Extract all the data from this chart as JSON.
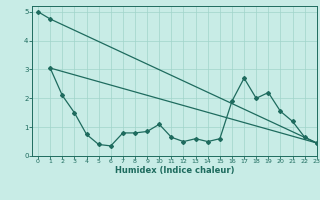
{
  "xlabel": "Humidex (Indice chaleur)",
  "xlim": [
    -0.5,
    23
  ],
  "ylim": [
    0,
    5.2
  ],
  "yticks": [
    0,
    1,
    2,
    3,
    4,
    5
  ],
  "xticks": [
    0,
    1,
    2,
    3,
    4,
    5,
    6,
    7,
    8,
    9,
    10,
    11,
    12,
    13,
    14,
    15,
    16,
    17,
    18,
    19,
    20,
    21,
    22,
    23
  ],
  "bg_color": "#c8ece6",
  "line_color": "#1e6b5e",
  "grid_color": "#a0d4ca",
  "line1_x": [
    0,
    1,
    23
  ],
  "line1_y": [
    5.0,
    4.75,
    0.45
  ],
  "line2_x": [
    1,
    23
  ],
  "line2_y": [
    3.05,
    0.45
  ],
  "line3_x": [
    1,
    2,
    3,
    4,
    5,
    6,
    7,
    8,
    9,
    10,
    11,
    12,
    13,
    14,
    15,
    16,
    17,
    18,
    19,
    20,
    21,
    22,
    23
  ],
  "line3_y": [
    3.05,
    2.1,
    1.5,
    0.75,
    0.4,
    0.35,
    0.8,
    0.8,
    0.85,
    1.1,
    0.65,
    0.5,
    0.6,
    0.5,
    0.6,
    1.9,
    2.7,
    2.0,
    2.2,
    1.55,
    1.2,
    0.65,
    0.45
  ]
}
